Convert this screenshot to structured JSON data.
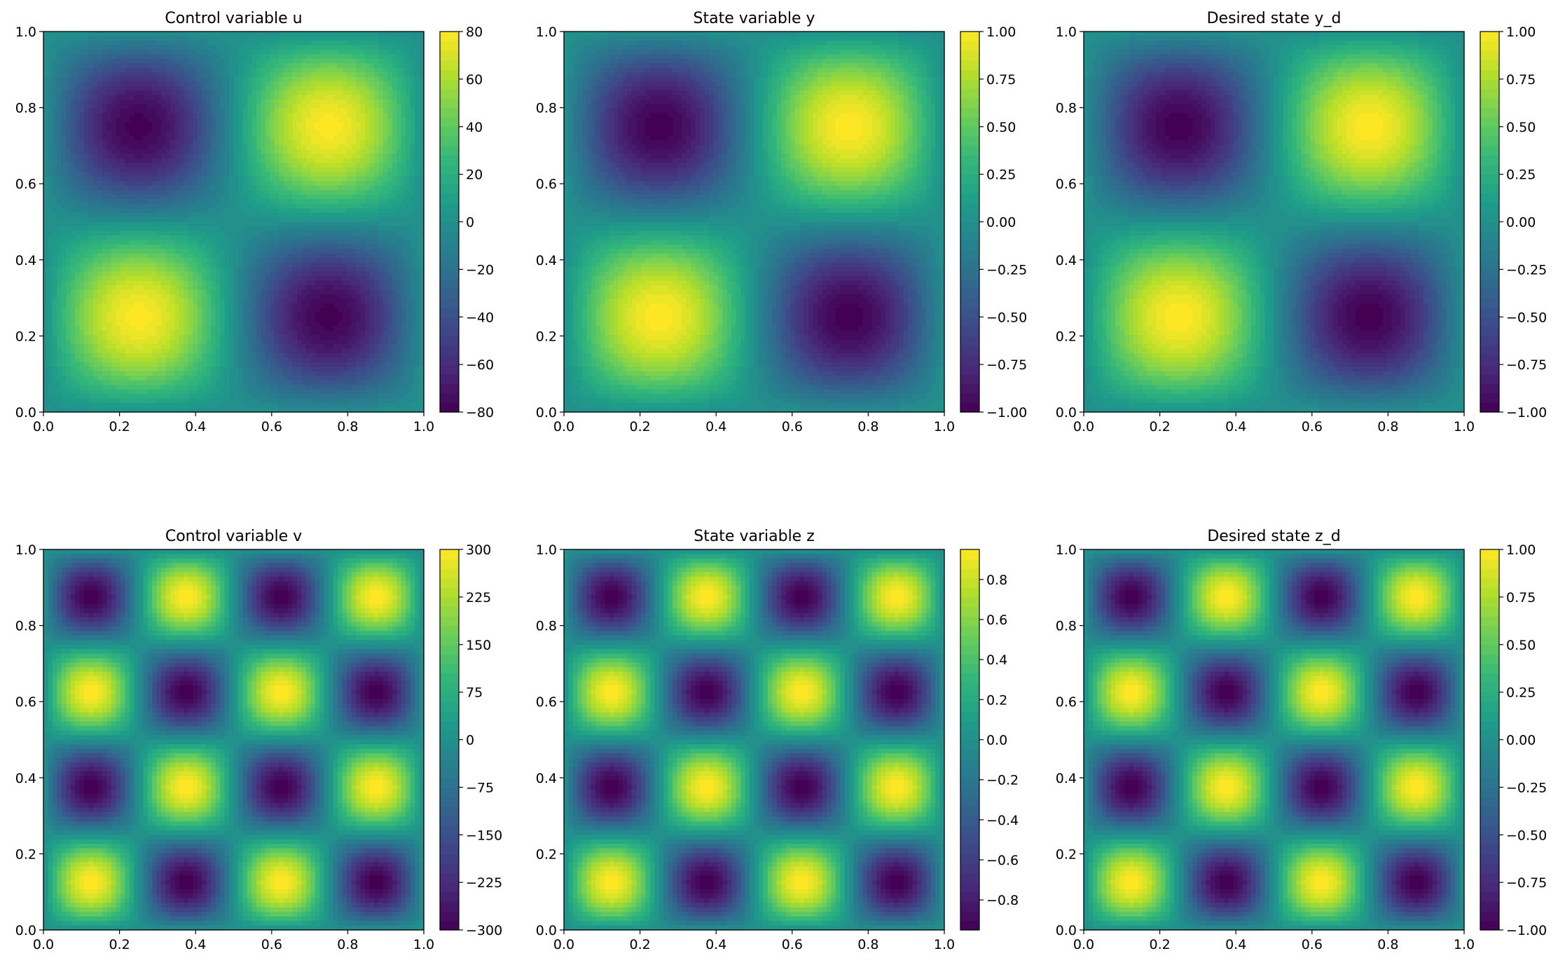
{
  "colormap": "viridis",
  "colormap_stops": [
    "#440154",
    "#482878",
    "#3e4989",
    "#31688e",
    "#26828e",
    "#1f9e89",
    "#35b779",
    "#6ece58",
    "#b5de2b",
    "#fde725"
  ],
  "chart_data": [
    {
      "type": "heatmap",
      "title": "Control variable u",
      "field": "amp*sin(2*pi*x)*sin(2*pi*y)",
      "x_range": [
        0,
        1
      ],
      "y_range": [
        0,
        1
      ],
      "peak_positive": [
        [
          0.25,
          0.25
        ],
        [
          0.75,
          0.75
        ]
      ],
      "peak_negative": [
        [
          0.75,
          0.25
        ],
        [
          0.25,
          0.75
        ]
      ],
      "amplitude": 79.5,
      "clim": [
        -80,
        80
      ],
      "xticks": [
        "0.0",
        "0.2",
        "0.4",
        "0.6",
        "0.8",
        "1.0"
      ],
      "yticks": [
        "0.0",
        "0.2",
        "0.4",
        "0.6",
        "0.8",
        "1.0"
      ],
      "colorbar_ticks": [
        "−80",
        "−60",
        "−40",
        "−20",
        "0",
        "20",
        "40",
        "60",
        "80"
      ],
      "colorbar_values": [
        -80,
        -60,
        -40,
        -20,
        0,
        20,
        40,
        60,
        80
      ]
    },
    {
      "type": "heatmap",
      "title": "State variable y",
      "field": "amp*sin(2*pi*x)*sin(2*pi*y)",
      "x_range": [
        0,
        1
      ],
      "y_range": [
        0,
        1
      ],
      "peak_positive": [
        [
          0.25,
          0.25
        ],
        [
          0.75,
          0.75
        ]
      ],
      "peak_negative": [
        [
          0.75,
          0.25
        ],
        [
          0.25,
          0.75
        ]
      ],
      "amplitude": 1.0,
      "clim": [
        -1,
        1
      ],
      "xticks": [
        "0.0",
        "0.2",
        "0.4",
        "0.6",
        "0.8",
        "1.0"
      ],
      "yticks": [
        "0.0",
        "0.2",
        "0.4",
        "0.6",
        "0.8",
        "1.0"
      ],
      "colorbar_ticks": [
        "−1.00",
        "−0.75",
        "−0.50",
        "−0.25",
        "0.00",
        "0.25",
        "0.50",
        "0.75",
        "1.00"
      ],
      "colorbar_values": [
        -1,
        -0.75,
        -0.5,
        -0.25,
        0,
        0.25,
        0.5,
        0.75,
        1
      ]
    },
    {
      "type": "heatmap",
      "title": "Desired state y_d",
      "field": "amp*sin(2*pi*x)*sin(2*pi*y)",
      "x_range": [
        0,
        1
      ],
      "y_range": [
        0,
        1
      ],
      "peak_positive": [
        [
          0.25,
          0.25
        ],
        [
          0.75,
          0.75
        ]
      ],
      "peak_negative": [
        [
          0.75,
          0.25
        ],
        [
          0.25,
          0.75
        ]
      ],
      "amplitude": 1.0,
      "clim": [
        -1,
        1
      ],
      "xticks": [
        "0.0",
        "0.2",
        "0.4",
        "0.6",
        "0.8",
        "1.0"
      ],
      "yticks": [
        "0.0",
        "0.2",
        "0.4",
        "0.6",
        "0.8",
        "1.0"
      ],
      "colorbar_ticks": [
        "−1.00",
        "−0.75",
        "−0.50",
        "−0.25",
        "0.00",
        "0.25",
        "0.50",
        "0.75",
        "1.00"
      ],
      "colorbar_values": [
        -1,
        -0.75,
        -0.5,
        -0.25,
        0,
        0.25,
        0.5,
        0.75,
        1
      ]
    },
    {
      "type": "heatmap",
      "title": "Control variable v",
      "field": "amp*sin(4*pi*x)*sin(4*pi*y)",
      "x_range": [
        0,
        1
      ],
      "y_range": [
        0,
        1
      ],
      "peak_positive": [
        [
          0.125,
          0.125
        ],
        [
          0.625,
          0.125
        ],
        [
          0.375,
          0.375
        ],
        [
          0.875,
          0.375
        ],
        [
          0.125,
          0.625
        ],
        [
          0.625,
          0.625
        ],
        [
          0.375,
          0.875
        ],
        [
          0.875,
          0.875
        ]
      ],
      "peak_negative": [
        [
          0.375,
          0.125
        ],
        [
          0.875,
          0.125
        ],
        [
          0.125,
          0.375
        ],
        [
          0.625,
          0.375
        ],
        [
          0.375,
          0.625
        ],
        [
          0.875,
          0.625
        ],
        [
          0.125,
          0.875
        ],
        [
          0.625,
          0.875
        ]
      ],
      "amplitude": 300,
      "clim": [
        -300,
        300
      ],
      "xticks": [
        "0.0",
        "0.2",
        "0.4",
        "0.6",
        "0.8",
        "1.0"
      ],
      "yticks": [
        "0.0",
        "0.2",
        "0.4",
        "0.6",
        "0.8",
        "1.0"
      ],
      "colorbar_ticks": [
        "−300",
        "−225",
        "−150",
        "−75",
        "0",
        "75",
        "150",
        "225",
        "300"
      ],
      "colorbar_values": [
        -300,
        -225,
        -150,
        -75,
        0,
        75,
        150,
        225,
        300
      ]
    },
    {
      "type": "heatmap",
      "title": "State variable z",
      "field": "amp*sin(4*pi*x)*sin(4*pi*y)",
      "x_range": [
        0,
        1
      ],
      "y_range": [
        0,
        1
      ],
      "peak_positive": [
        [
          0.125,
          0.125
        ],
        [
          0.625,
          0.125
        ],
        [
          0.375,
          0.375
        ],
        [
          0.875,
          0.375
        ],
        [
          0.125,
          0.625
        ],
        [
          0.625,
          0.625
        ],
        [
          0.375,
          0.875
        ],
        [
          0.875,
          0.875
        ]
      ],
      "peak_negative": [
        [
          0.375,
          0.125
        ],
        [
          0.875,
          0.125
        ],
        [
          0.125,
          0.375
        ],
        [
          0.625,
          0.375
        ],
        [
          0.375,
          0.625
        ],
        [
          0.875,
          0.625
        ],
        [
          0.125,
          0.875
        ],
        [
          0.625,
          0.875
        ]
      ],
      "amplitude": 0.95,
      "clim": [
        -0.95,
        0.95
      ],
      "xticks": [
        "0.0",
        "0.2",
        "0.4",
        "0.6",
        "0.8",
        "1.0"
      ],
      "yticks": [
        "0.0",
        "0.2",
        "0.4",
        "0.6",
        "0.8",
        "1.0"
      ],
      "colorbar_ticks": [
        "−0.8",
        "−0.6",
        "−0.4",
        "−0.2",
        "0.0",
        "0.2",
        "0.4",
        "0.6",
        "0.8"
      ],
      "colorbar_values": [
        -0.8,
        -0.6,
        -0.4,
        -0.2,
        0,
        0.2,
        0.4,
        0.6,
        0.8
      ]
    },
    {
      "type": "heatmap",
      "title": "Desired state z_d",
      "field": "amp*sin(4*pi*x)*sin(4*pi*y)",
      "x_range": [
        0,
        1
      ],
      "y_range": [
        0,
        1
      ],
      "peak_positive": [
        [
          0.125,
          0.125
        ],
        [
          0.625,
          0.125
        ],
        [
          0.375,
          0.375
        ],
        [
          0.875,
          0.375
        ],
        [
          0.125,
          0.625
        ],
        [
          0.625,
          0.625
        ],
        [
          0.375,
          0.875
        ],
        [
          0.875,
          0.875
        ]
      ],
      "peak_negative": [
        [
          0.375,
          0.125
        ],
        [
          0.875,
          0.125
        ],
        [
          0.125,
          0.375
        ],
        [
          0.625,
          0.375
        ],
        [
          0.375,
          0.625
        ],
        [
          0.875,
          0.625
        ],
        [
          0.125,
          0.875
        ],
        [
          0.625,
          0.875
        ]
      ],
      "amplitude": 1.0,
      "clim": [
        -1,
        1
      ],
      "xticks": [
        "0.0",
        "0.2",
        "0.4",
        "0.6",
        "0.8",
        "1.0"
      ],
      "yticks": [
        "0.0",
        "0.2",
        "0.4",
        "0.6",
        "0.8",
        "1.0"
      ],
      "colorbar_ticks": [
        "−1.00",
        "−0.75",
        "−0.50",
        "−0.25",
        "0.00",
        "0.25",
        "0.50",
        "0.75",
        "1.00"
      ],
      "colorbar_values": [
        -1,
        -0.75,
        -0.5,
        -0.25,
        0,
        0.25,
        0.5,
        0.75,
        1
      ]
    }
  ]
}
